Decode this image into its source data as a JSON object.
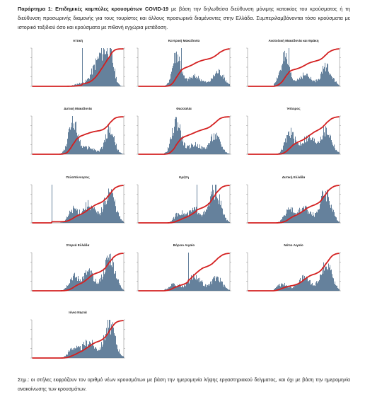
{
  "intro": {
    "label": "Παράρτημα 1:",
    "heading": "Επιδημικές καμπύλες κρουσμάτων COVID-19",
    "body": "με βάση την δηλωθείσα διεύθυνση μόνιμης κατοικίας του κρούσματος ή τη διεύθυνση προσωρινής διαμονής για τους τουρίστες και άλλους προσωρινά διαμένοντες στην Ελλάδα. Συμπεριλαμβάνονται τόσο κρούσματα με ιστορικό ταξιδιού όσο και κρούσματα με πιθανή εγχώρια μετάδοση."
  },
  "colors": {
    "bars": "#4a6b8a",
    "line": "#d42020",
    "axis": "#777777"
  },
  "regions": [
    {
      "name": "Αττική",
      "shape": "attica"
    },
    {
      "name": "Κεντρική Μακεδονία",
      "shape": "cmac"
    },
    {
      "name": "Ανατολική Μακεδονία και Θράκη",
      "shape": "emac"
    },
    {
      "name": "Δυτική Μακεδονία",
      "shape": "wmac"
    },
    {
      "name": "Θεσσαλία",
      "shape": "thes"
    },
    {
      "name": "Ήπειρος",
      "shape": "epir"
    },
    {
      "name": "Πελοπόννησος",
      "shape": "pelo"
    },
    {
      "name": "Κρήτη",
      "shape": "crete"
    },
    {
      "name": "Δυτική Ελλάδα",
      "shape": "wgr"
    },
    {
      "name": "Στερεά Ελλάδα",
      "shape": "ster"
    },
    {
      "name": "Βόρειο Αιγαίο",
      "shape": "naeg"
    },
    {
      "name": "Νότιο Αιγαίο",
      "shape": "saeg"
    },
    {
      "name": "Ιόνια Νησιά",
      "shape": "ionian"
    }
  ],
  "note": "Σημ.: οι στήλες εκφράζουν τον αριθμό νέων κρουσμάτων με βάση την ημερομηνία λήψης εργαστηριακού δείγματος, και όχι με βάση την ημερομηνία ανακοίνωσης των κρουσμάτων."
}
